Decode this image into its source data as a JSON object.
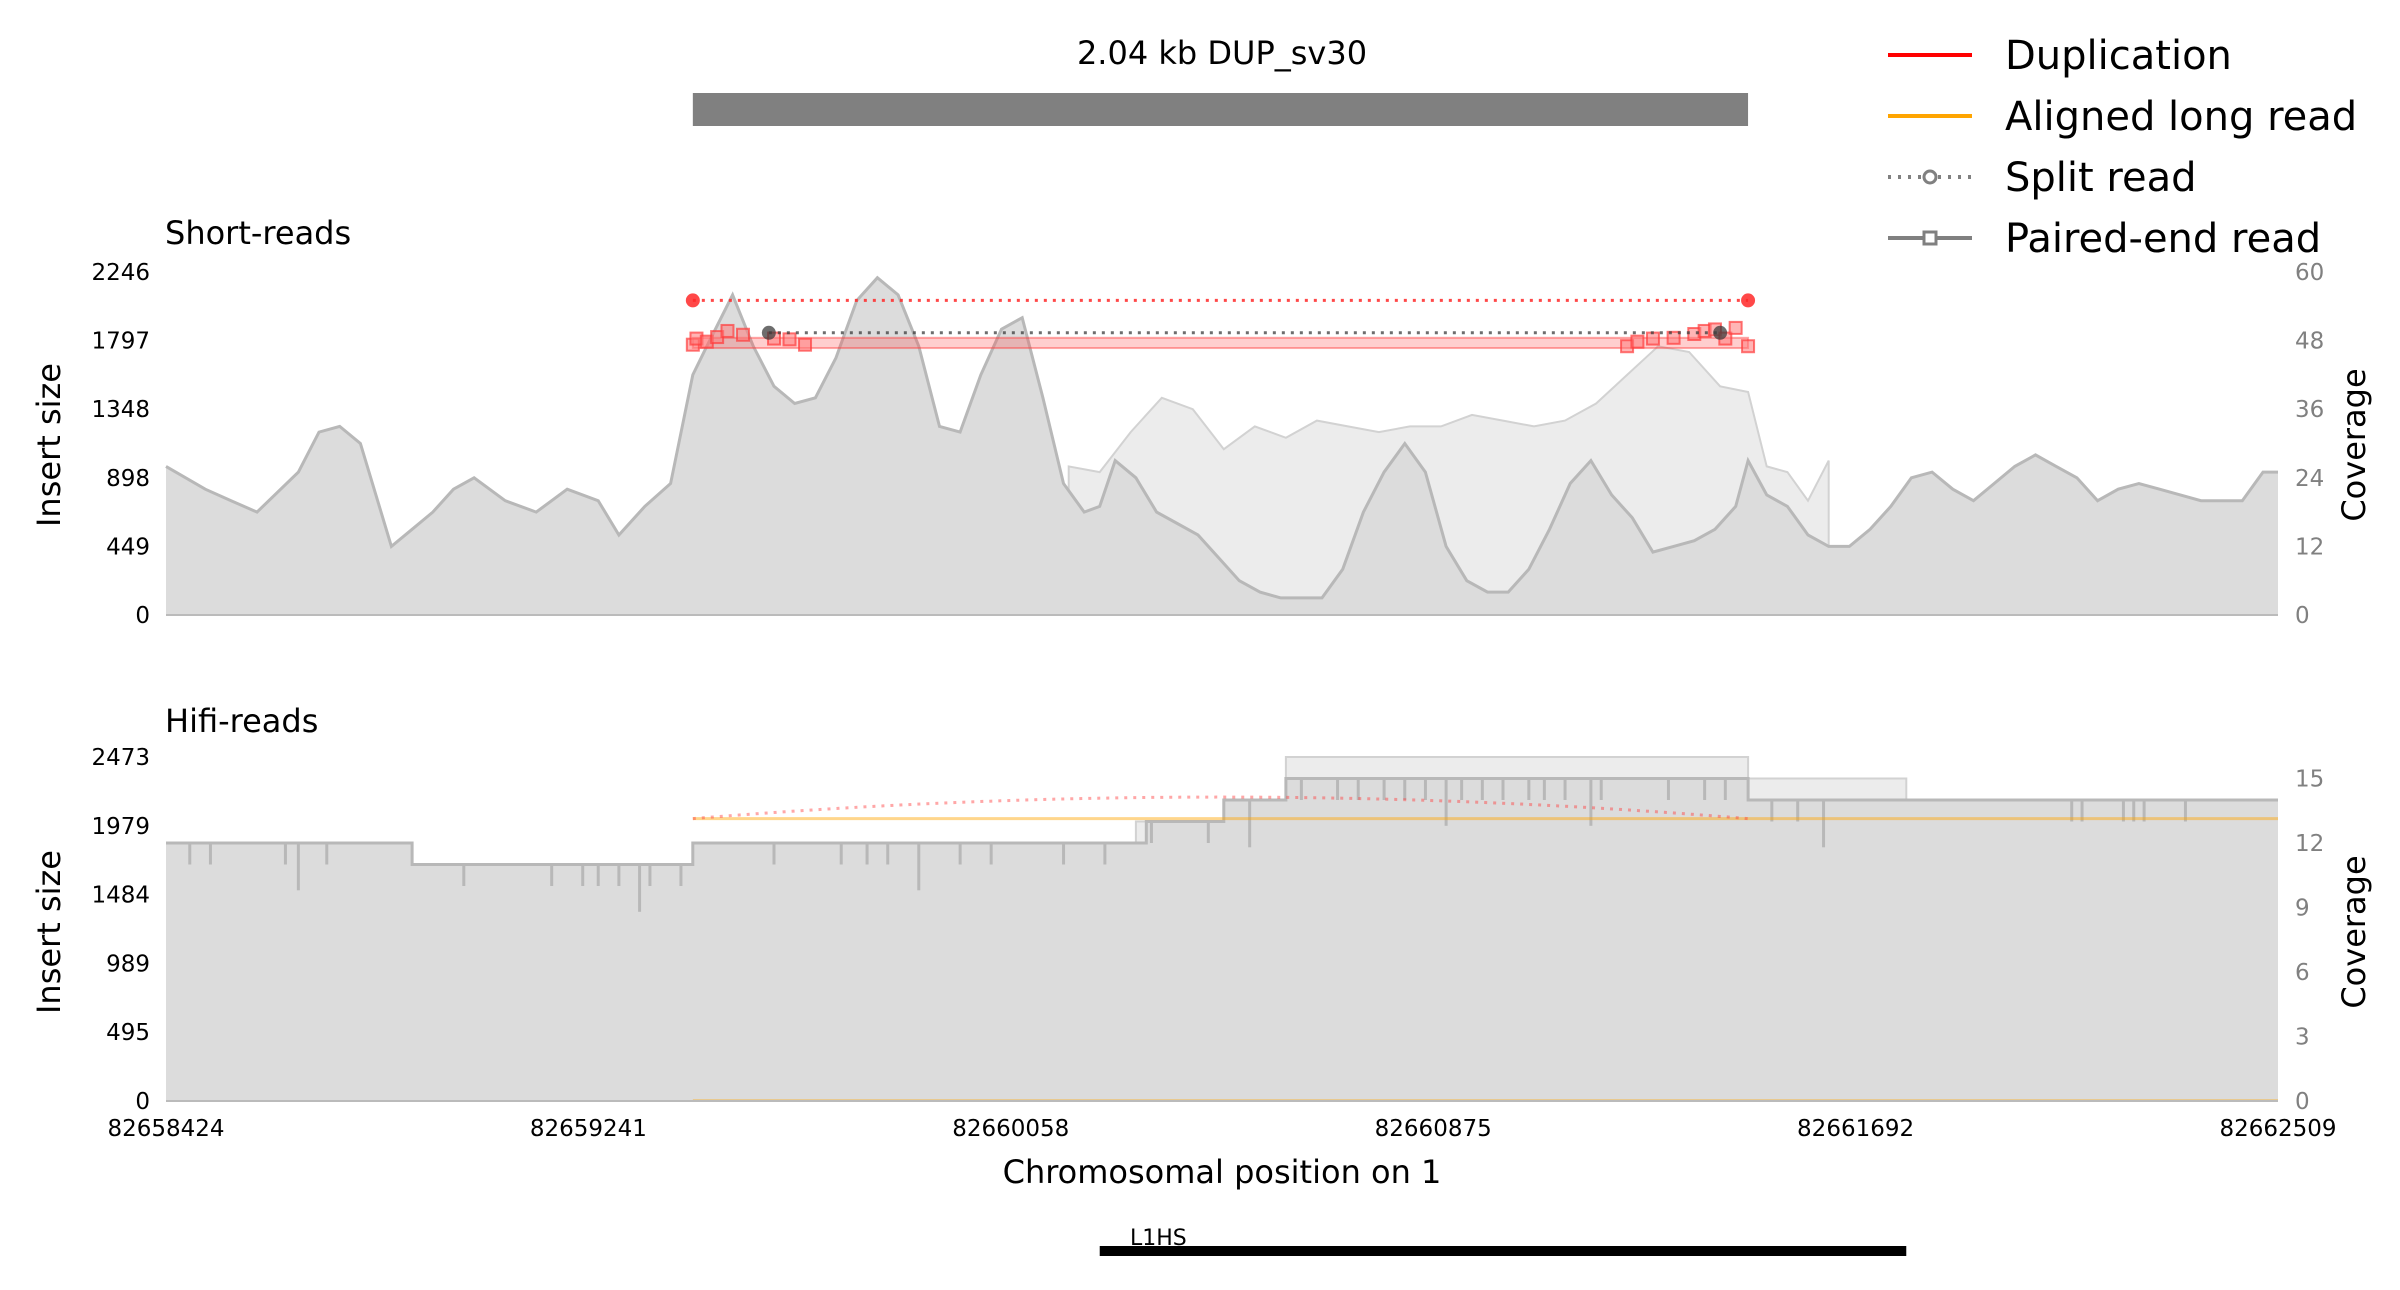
{
  "chart_data": {
    "type": "area",
    "title": "2.04 kb DUP_sv30",
    "sv": {
      "type": "Duplication",
      "length_label": "2.04 kb",
      "start": 82659443,
      "end": 82661484
    },
    "xlabel": "Chromosomal position on 1",
    "x_ticks": [
      82658424,
      82659241,
      82660058,
      82660875,
      82661692,
      82662509
    ],
    "xlim": [
      82658424,
      82662509
    ],
    "legend": {
      "placement": "top-right",
      "items": [
        {
          "label": "Duplication",
          "color": "#ff0000",
          "style": "line"
        },
        {
          "label": "Aligned long read",
          "color": "#ffa500",
          "style": "line"
        },
        {
          "label": "Split read",
          "color": "#808080",
          "style": "dotted-circle"
        },
        {
          "label": "Paired-end read",
          "color": "#808080",
          "style": "solid-square"
        }
      ]
    },
    "panels": [
      {
        "name": "Short-reads",
        "ylabel_left": "Insert size",
        "ylabel_right": "Coverage",
        "y_ticks_left": [
          "0",
          "449",
          "898",
          "1348",
          "1797",
          "2246"
        ],
        "y_ticks_right": [
          "0",
          "12",
          "24",
          "36",
          "48",
          "60"
        ],
        "ylim_left": [
          0,
          2246
        ],
        "ylim_right": [
          0,
          60
        ],
        "coverage": {
          "x": [
            82658424,
            82658500,
            82658550,
            82658600,
            82658680,
            82658720,
            82658760,
            82658800,
            82658860,
            82658900,
            82658940,
            82658980,
            82659020,
            82659080,
            82659140,
            82659200,
            82659260,
            82659300,
            82659350,
            82659400,
            82659443,
            82659470,
            82659520,
            82659560,
            82659600,
            82659640,
            82659680,
            82659720,
            82659760,
            82659800,
            82659840,
            82659880,
            82659920,
            82659960,
            82660000,
            82660040,
            82660080,
            82660120,
            82660160,
            82660200,
            82660230,
            82660260,
            82660300,
            82660340,
            82660380,
            82660420,
            82660460,
            82660500,
            82660540,
            82660580,
            82660620,
            82660660,
            82660700,
            82660740,
            82660780,
            82660820,
            82660860,
            82660900,
            82660940,
            82660980,
            82661020,
            82661060,
            82661100,
            82661140,
            82661180,
            82661220,
            82661260,
            82661300,
            82661340,
            82661380,
            82661420,
            82661460,
            82661484,
            82661520,
            82661560,
            82661600,
            82661640,
            82661680,
            82661720,
            82661760,
            82661800,
            82661840,
            82661880,
            82661920,
            82661960,
            82662000,
            82662040,
            82662080,
            82662120,
            82662160,
            82662200,
            82662240,
            82662280,
            82662320,
            82662360,
            82662400,
            82662440,
            82662480,
            82662509
          ],
          "values": [
            26,
            22,
            20,
            18,
            25,
            32,
            33,
            30,
            12,
            15,
            18,
            22,
            24,
            20,
            18,
            22,
            20,
            14,
            19,
            23,
            42,
            47,
            56,
            47,
            40,
            37,
            38,
            45,
            55,
            59,
            56,
            47,
            33,
            32,
            42,
            50,
            52,
            38,
            23,
            18,
            19,
            27,
            24,
            18,
            16,
            14,
            10,
            6,
            4,
            3,
            3,
            3,
            8,
            18,
            25,
            30,
            25,
            12,
            6,
            4,
            4,
            8,
            15,
            23,
            27,
            21,
            17,
            11,
            12,
            13,
            15,
            19,
            27,
            21,
            19,
            14,
            12,
            12,
            15,
            19,
            24,
            25,
            22,
            20,
            23,
            26,
            28,
            26,
            24,
            20,
            22,
            23,
            22,
            21,
            20,
            20,
            20,
            25,
            25
          ]
        },
        "coverage_soft": {
          "x": [
            82660170,
            82660230,
            82660290,
            82660350,
            82660410,
            82660470,
            82660530,
            82660590,
            82660650,
            82660710,
            82660770,
            82660830,
            82660890,
            82660950,
            82661010,
            82661070,
            82661130,
            82661190,
            82661250,
            82661310,
            82661370,
            82661430,
            82661484,
            82661520,
            82661560,
            82661600,
            82661640
          ],
          "values": [
            26,
            25,
            32,
            38,
            36,
            29,
            33,
            31,
            34,
            33,
            32,
            33,
            33,
            35,
            34,
            33,
            34,
            37,
            42,
            47,
            46,
            40,
            39,
            26,
            25,
            20,
            27
          ]
        },
        "split_reads": [
          {
            "start": 82659443,
            "end": 82661484,
            "insert_size": 2060,
            "color": "#ff0000",
            "style": "dotted"
          },
          {
            "start": 82659590,
            "end": 82661430,
            "insert_size": 1848,
            "color": "#404040",
            "style": "dotted"
          }
        ],
        "paired_end_reads": {
          "band_start": 82659443,
          "band_end": 82661484,
          "band_insert_size": [
            1748,
            1815
          ],
          "markers": [
            {
              "x": 82659443,
              "y": 1770
            },
            {
              "x": 82659450,
              "y": 1810
            },
            {
              "x": 82659470,
              "y": 1790
            },
            {
              "x": 82659490,
              "y": 1820
            },
            {
              "x": 82659510,
              "y": 1860
            },
            {
              "x": 82659540,
              "y": 1835
            },
            {
              "x": 82659600,
              "y": 1810
            },
            {
              "x": 82659630,
              "y": 1805
            },
            {
              "x": 82659660,
              "y": 1770
            },
            {
              "x": 82661250,
              "y": 1760
            },
            {
              "x": 82661270,
              "y": 1790
            },
            {
              "x": 82661300,
              "y": 1810
            },
            {
              "x": 82661340,
              "y": 1815
            },
            {
              "x": 82661380,
              "y": 1840
            },
            {
              "x": 82661400,
              "y": 1860
            },
            {
              "x": 82661420,
              "y": 1870
            },
            {
              "x": 82661440,
              "y": 1810
            },
            {
              "x": 82661460,
              "y": 1880
            },
            {
              "x": 82661484,
              "y": 1760
            }
          ]
        }
      },
      {
        "name": "Hifi-reads",
        "ylabel_left": "Insert size",
        "ylabel_right": "Coverage",
        "y_ticks_left": [
          "0",
          "495",
          "989",
          "1484",
          "1979",
          "2473"
        ],
        "y_ticks_right": [
          "0",
          "3",
          "6",
          "9",
          "12",
          "15"
        ],
        "ylim_left": [
          0,
          2473
        ],
        "ylim_right": [
          0,
          16
        ],
        "coverage": {
          "x": [
            82658424,
            82658900,
            82659443,
            82660320,
            82660470,
            82660590,
            82661120,
            82661484,
            82662509
          ],
          "values": [
            12,
            11,
            12,
            13,
            14,
            15,
            15,
            14,
            14
          ]
        },
        "coverage_soft": {
          "x": [
            82660270,
            82660300,
            82660470,
            82660590,
            82661484,
            82661790,
            82661800
          ],
          "values": [
            12,
            13,
            14,
            16,
            15,
            14,
            14
          ]
        },
        "dips": [
          82658470,
          82658510,
          82658655,
          82658680,
          82658735,
          82659000,
          82659170,
          82659230,
          82659260,
          82659300,
          82659340,
          82659360,
          82659420,
          82659600,
          82659730,
          82659780,
          82659820,
          82659880,
          82659960,
          82660020,
          82660160,
          82660240,
          82660330,
          82660440,
          82660520,
          82660620,
          82660690,
          82660730,
          82660780,
          82660820,
          82660860,
          82660900,
          82660930,
          82660970,
          82661010,
          82661060,
          82661090,
          82661130,
          82661180,
          82661200,
          82661330,
          82661400,
          82661440,
          82661530,
          82661580,
          82661630,
          82662110,
          82662130,
          82662210,
          82662230,
          82662250,
          82662330
        ],
        "aligned_long_read": {
          "start": 82659443,
          "end": 82662509,
          "insert_size": 2030,
          "color": "#ffa500"
        },
        "split_read_arc": {
          "start": 82659443,
          "end": 82661484,
          "insert_size": 2030,
          "peak_insert_size": 2185,
          "color": "#ff0000",
          "style": "dotted"
        }
      }
    ],
    "annotation": {
      "label": "L1HS",
      "start": 82660230,
      "end": 82661790
    }
  }
}
